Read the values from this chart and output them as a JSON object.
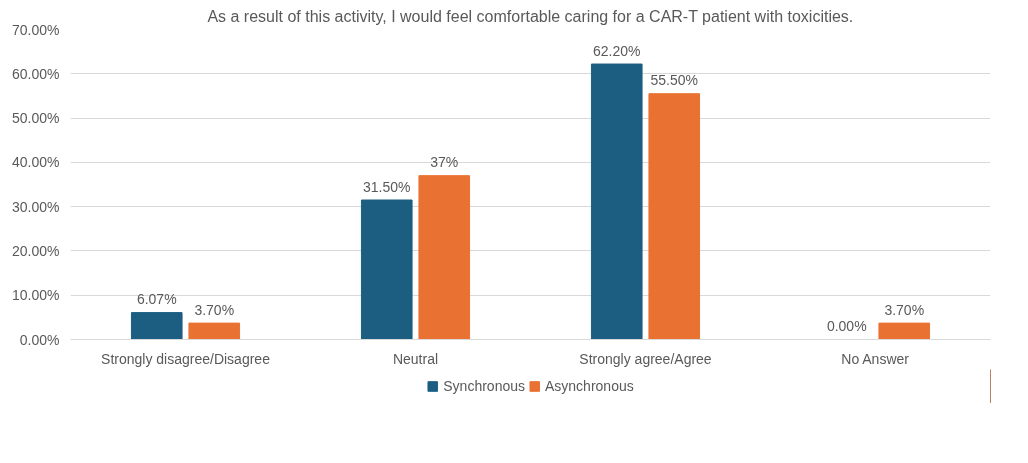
{
  "chart_data": {
    "type": "bar",
    "title": "As a result of this activity, I would feel comfortable caring for a CAR-T patient with toxicities.",
    "categories": [
      "Strongly disagree/Disagree",
      "Neutral",
      "Strongly agree/Agree",
      "No Answer"
    ],
    "series": [
      {
        "name": "Synchronous",
        "color": "#1b5e82",
        "values": [
          6.07,
          31.5,
          62.2,
          0.0
        ],
        "value_labels": [
          "6.07%",
          "31.50%",
          "62.20%",
          "0.00%"
        ]
      },
      {
        "name": "Asynchronous",
        "color": "#e97132",
        "values": [
          3.7,
          37,
          55.5,
          3.7
        ],
        "value_labels": [
          "3.70%",
          "37%",
          "55.50%",
          "3.70%"
        ]
      }
    ],
    "ylim": [
      0,
      70
    ],
    "yticks": [
      {
        "value": 0,
        "label": "0.00%"
      },
      {
        "value": 10,
        "label": "10.00%"
      },
      {
        "value": 20,
        "label": "20.00%"
      },
      {
        "value": 30,
        "label": "30.00%"
      },
      {
        "value": 40,
        "label": "40.00%"
      },
      {
        "value": 50,
        "label": "50.00%"
      },
      {
        "value": 60,
        "label": "60.00%"
      },
      {
        "value": 70,
        "label": "70.00%"
      }
    ],
    "grid": "y",
    "legend": "bottom"
  }
}
